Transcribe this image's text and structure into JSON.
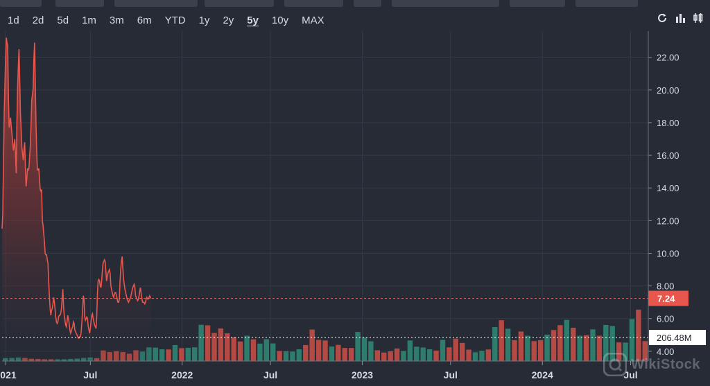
{
  "ranges": [
    {
      "label": "1d",
      "active": false
    },
    {
      "label": "2d",
      "active": false
    },
    {
      "label": "5d",
      "active": false
    },
    {
      "label": "1m",
      "active": false
    },
    {
      "label": "3m",
      "active": false
    },
    {
      "label": "6m",
      "active": false
    },
    {
      "label": "YTD",
      "active": false
    },
    {
      "label": "1y",
      "active": false
    },
    {
      "label": "2y",
      "active": false
    },
    {
      "label": "5y",
      "active": true
    },
    {
      "label": "10y",
      "active": false
    },
    {
      "label": "MAX",
      "active": false
    }
  ],
  "tools": [
    "refresh-icon",
    "bar-chart-icon",
    "candlestick-icon"
  ],
  "watermark": "WikiStock",
  "chart_data": {
    "type": "area",
    "y_ticks": [
      "22.00",
      "20.00",
      "18.00",
      "16.00",
      "14.00",
      "12.00",
      "10.00",
      "8.00",
      "6.00",
      "4.00"
    ],
    "ylim": [
      3.4,
      23.6
    ],
    "x_ticks": [
      {
        "label": "2021",
        "x": 1.0
      },
      {
        "label": "Jul",
        "x": 25.0
      },
      {
        "label": "2022",
        "x": 51.0
      },
      {
        "label": "Jul",
        "x": 76.0
      },
      {
        "label": "2023",
        "x": 102.0
      },
      {
        "label": "Jul",
        "x": 127.0
      },
      {
        "label": "2024",
        "x": 153.0
      },
      {
        "label": "Jul",
        "x": 178.0
      }
    ],
    "last_price": {
      "value": 7.24,
      "label": "7.24"
    },
    "last_volume": {
      "label": "206.48M"
    },
    "colors": {
      "line": "#e8574e",
      "up": "#2e7d6c",
      "down": "#b54a45",
      "grid": "#343a46"
    },
    "series": [
      {
        "type": "line",
        "values": [
          11.5,
          12.4,
          15.5,
          18.7,
          20.3,
          22.0,
          23.2,
          22.9,
          22.7,
          19.5,
          17.7,
          18.0,
          18.3,
          17.8,
          17.3,
          16.8,
          16.3,
          16.6,
          17.0,
          16.0,
          14.9,
          18.0,
          20.2,
          21.4,
          22.5,
          20.6,
          18.5,
          17.6,
          16.5,
          16.1,
          15.7,
          16.4,
          16.8,
          15.3,
          14.1,
          14.6,
          15.2,
          15.1,
          15.2,
          15.9,
          16.6,
          17.9,
          19.4,
          19.7,
          20.1,
          21.8,
          22.9,
          20.5,
          18.0,
          16.3,
          15.1,
          15.1,
          15.2,
          14.5,
          13.9,
          13.8,
          13.9,
          12.0,
          11.7,
          11.2,
          10.7,
          10.0,
          9.9,
          9.9,
          9.6,
          9.4,
          8.3,
          7.4,
          6.6,
          6.2,
          6.5,
          6.6,
          6.9,
          7.3,
          7.0,
          6.6,
          6.1,
          5.8,
          5.7,
          5.8,
          6.1,
          6.2,
          6.2,
          6.3,
          6.6,
          7.2,
          7.8,
          6.8,
          6.2,
          5.9,
          5.6,
          5.5,
          5.8,
          6.2,
          6.0,
          5.7,
          5.3,
          5.1,
          5.2,
          5.4,
          5.5,
          5.8,
          5.7,
          5.3,
          5.2,
          5.1,
          5.0,
          4.9,
          4.8,
          4.8,
          4.9,
          4.9,
          5.2,
          5.8,
          6.5,
          7.4,
          7.2,
          6.1,
          5.9,
          6.0,
          6.1,
          6.0,
          5.5,
          5.3,
          5.1,
          5.4,
          5.8,
          6.2,
          6.3,
          6.0,
          5.8,
          5.6,
          5.5,
          5.4,
          6.1,
          7.5,
          8.3,
          8.4,
          8.3,
          8.0,
          7.9,
          8.3,
          8.9,
          9.4,
          9.5,
          9.6,
          9.5,
          8.9,
          8.3,
          8.6,
          8.8,
          8.9,
          9.0,
          8.8,
          8.0,
          7.8,
          7.6,
          7.4,
          7.3,
          7.5,
          7.6,
          7.6,
          7.4,
          7.2,
          7.0,
          7.0,
          7.2,
          8.3,
          9.0,
          9.5,
          9.8,
          9.1,
          8.4,
          8.1,
          7.8,
          7.6,
          7.4,
          7.2,
          7.1,
          7.0,
          7.1,
          7.2,
          7.3,
          7.5,
          7.7,
          7.9,
          8.0,
          8.1,
          7.9,
          7.4,
          7.3,
          7.2,
          7.1,
          7.2,
          7.4,
          7.7,
          7.9,
          7.5,
          7.2,
          7.0,
          7.0,
          7.0,
          6.9,
          7.0,
          7.2,
          7.3,
          7.2,
          7.2,
          7.3,
          7.4,
          7.3,
          7.24
        ],
        "x_start": 0.0,
        "x_step": 0.2
      }
    ],
    "volume": {
      "values": [
        {
          "h": 0.18,
          "up": true
        },
        {
          "h": 0.19,
          "up": true
        },
        {
          "h": 0.22,
          "up": true
        },
        {
          "h": 0.19,
          "up": false
        },
        {
          "h": 0.14,
          "up": false
        },
        {
          "h": 0.13,
          "up": false
        },
        {
          "h": 0.11,
          "up": false
        },
        {
          "h": 0.11,
          "up": false
        },
        {
          "h": 0.11,
          "up": true
        },
        {
          "h": 0.11,
          "up": true
        },
        {
          "h": 0.13,
          "up": true
        },
        {
          "h": 0.15,
          "up": true
        },
        {
          "h": 0.19,
          "up": true
        },
        {
          "h": 0.22,
          "up": true
        },
        {
          "h": 0.18,
          "up": false
        },
        {
          "h": 0.65,
          "up": false
        },
        {
          "h": 0.55,
          "up": false
        },
        {
          "h": 0.61,
          "up": false
        },
        {
          "h": 0.55,
          "up": false
        },
        {
          "h": 0.45,
          "up": false
        },
        {
          "h": 0.66,
          "up": false
        },
        {
          "h": 0.58,
          "up": true
        },
        {
          "h": 0.84,
          "up": true
        },
        {
          "h": 0.82,
          "up": true
        },
        {
          "h": 0.72,
          "up": true
        },
        {
          "h": 0.71,
          "up": false
        },
        {
          "h": 0.98,
          "up": true
        },
        {
          "h": 0.79,
          "up": false
        },
        {
          "h": 0.81,
          "up": true
        },
        {
          "h": 0.84,
          "up": true
        },
        {
          "h": 2.22,
          "up": true
        },
        {
          "h": 2.19,
          "up": false
        },
        {
          "h": 1.72,
          "up": false
        },
        {
          "h": 2.0,
          "up": false
        },
        {
          "h": 1.7,
          "up": false
        },
        {
          "h": 1.46,
          "up": false
        },
        {
          "h": 1.2,
          "up": false
        },
        {
          "h": 1.55,
          "up": true
        },
        {
          "h": 1.33,
          "up": false
        },
        {
          "h": 1.07,
          "up": true
        },
        {
          "h": 1.34,
          "up": true
        },
        {
          "h": 1.08,
          "up": true
        },
        {
          "h": 0.62,
          "up": false
        },
        {
          "h": 0.6,
          "up": true
        },
        {
          "h": 0.58,
          "up": true
        },
        {
          "h": 0.72,
          "up": true
        },
        {
          "h": 0.98,
          "up": false
        },
        {
          "h": 1.93,
          "up": false
        },
        {
          "h": 1.3,
          "up": false
        },
        {
          "h": 1.26,
          "up": false
        },
        {
          "h": 0.89,
          "up": true
        },
        {
          "h": 0.99,
          "up": false
        },
        {
          "h": 0.8,
          "up": false
        },
        {
          "h": 0.8,
          "up": false
        },
        {
          "h": 1.78,
          "up": true
        },
        {
          "h": 1.45,
          "up": true
        },
        {
          "h": 1.21,
          "up": true
        },
        {
          "h": 0.66,
          "up": false
        },
        {
          "h": 0.52,
          "up": false
        },
        {
          "h": 0.6,
          "up": false
        },
        {
          "h": 0.77,
          "up": false
        },
        {
          "h": 0.62,
          "up": true
        },
        {
          "h": 1.26,
          "up": true
        },
        {
          "h": 0.88,
          "up": true
        },
        {
          "h": 0.83,
          "up": true
        },
        {
          "h": 0.72,
          "up": true
        },
        {
          "h": 0.64,
          "up": false
        },
        {
          "h": 1.3,
          "up": true
        },
        {
          "h": 0.84,
          "up": false
        },
        {
          "h": 1.37,
          "up": false
        },
        {
          "h": 1.11,
          "up": false
        },
        {
          "h": 0.7,
          "up": false
        },
        {
          "h": 0.54,
          "up": true
        },
        {
          "h": 0.63,
          "up": true
        },
        {
          "h": 0.71,
          "up": false
        },
        {
          "h": 2.08,
          "up": true
        },
        {
          "h": 2.5,
          "up": false
        },
        {
          "h": 1.98,
          "up": true
        },
        {
          "h": 1.28,
          "up": false
        },
        {
          "h": 1.81,
          "up": false
        },
        {
          "h": 1.55,
          "up": true
        },
        {
          "h": 1.22,
          "up": false
        },
        {
          "h": 1.28,
          "up": false
        },
        {
          "h": 1.62,
          "up": true
        },
        {
          "h": 1.9,
          "up": false
        },
        {
          "h": 2.2,
          "up": false
        },
        {
          "h": 2.52,
          "up": true
        },
        {
          "h": 2.04,
          "up": false
        },
        {
          "h": 1.55,
          "up": true
        },
        {
          "h": 1.59,
          "up": false
        },
        {
          "h": 1.94,
          "up": true
        },
        {
          "h": 1.55,
          "up": false
        },
        {
          "h": 2.21,
          "up": true
        },
        {
          "h": 2.15,
          "up": true
        },
        {
          "h": 1.14,
          "up": false
        },
        {
          "h": 1.13,
          "up": true
        },
        {
          "h": 2.57,
          "up": true
        },
        {
          "h": 3.15,
          "up": false
        },
        {
          "h": 1.22,
          "up": false
        }
      ]
    }
  }
}
